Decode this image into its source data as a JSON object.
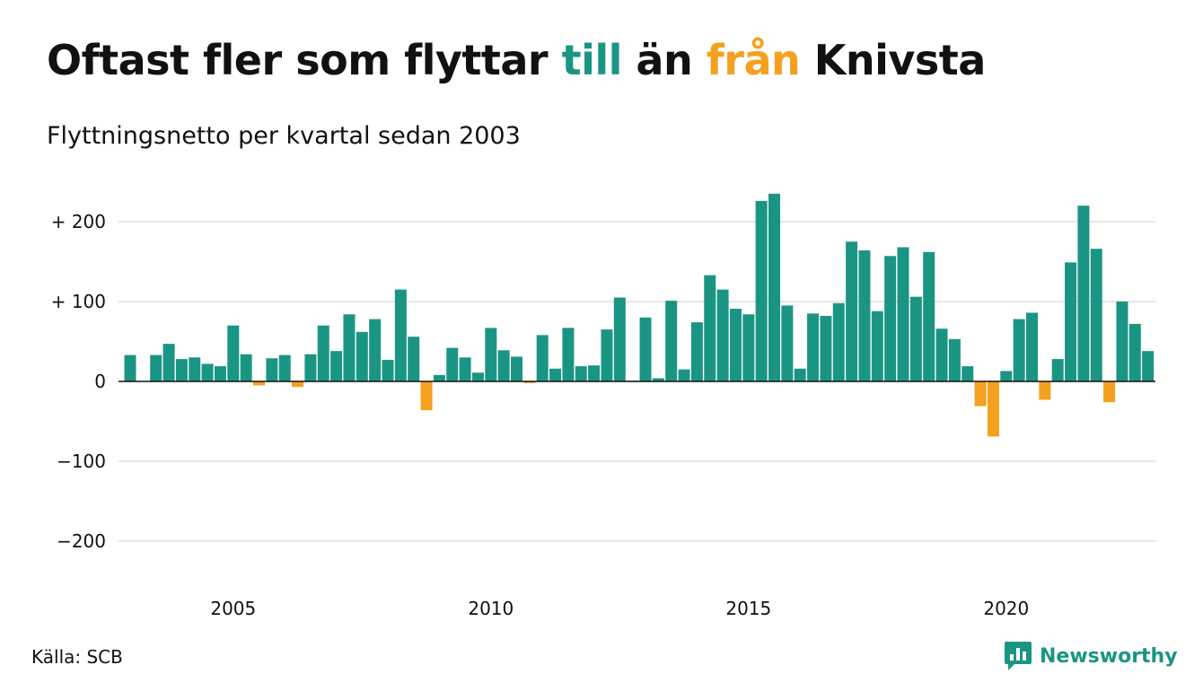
{
  "header": {
    "title_part1": "Oftast fler som flyttar ",
    "title_to": "till",
    "title_part2": " än ",
    "title_from": "från",
    "title_part3": " Knivsta",
    "subtitle": "Flyttningsnetto per kvartal sedan 2003"
  },
  "footer": {
    "source": "Källa: SCB",
    "brand": "Newsworthy",
    "brand_icon": "bar-chart-speech-bubble-icon"
  },
  "colors": {
    "positive": "#1b9583",
    "negative": "#f5a01e",
    "grid": "#dddddd",
    "zero_line": "#111111",
    "text": "#111111",
    "brand": "#1b9583"
  },
  "chart_data": {
    "type": "bar",
    "title": "Oftast fler som flyttar till än från Knivsta",
    "subtitle": "Flyttningsnetto per kvartal sedan 2003",
    "xlabel": "",
    "ylabel": "",
    "ylim": [
      -250,
      250
    ],
    "yticks": [
      {
        "value": 200,
        "label": "+ 200"
      },
      {
        "value": 100,
        "label": "+ 100"
      },
      {
        "value": 0,
        "label": "0"
      },
      {
        "value": -100,
        "label": "−100"
      },
      {
        "value": -200,
        "label": "−200"
      }
    ],
    "xticks": [
      {
        "year": 2005,
        "label": "2005"
      },
      {
        "year": 2010,
        "label": "2010"
      },
      {
        "year": 2015,
        "label": "2015"
      },
      {
        "year": 2020,
        "label": "2020"
      }
    ],
    "grid": true,
    "legend": "none",
    "start": "2003-Q1",
    "frequency": "quarterly",
    "categories": [
      "2003-Q1",
      "2003-Q2",
      "2003-Q3",
      "2003-Q4",
      "2004-Q1",
      "2004-Q2",
      "2004-Q3",
      "2004-Q4",
      "2005-Q1",
      "2005-Q2",
      "2005-Q3",
      "2005-Q4",
      "2006-Q1",
      "2006-Q2",
      "2006-Q3",
      "2006-Q4",
      "2007-Q1",
      "2007-Q2",
      "2007-Q3",
      "2007-Q4",
      "2008-Q1",
      "2008-Q2",
      "2008-Q3",
      "2008-Q4",
      "2009-Q1",
      "2009-Q2",
      "2009-Q3",
      "2009-Q4",
      "2010-Q1",
      "2010-Q2",
      "2010-Q3",
      "2010-Q4",
      "2011-Q1",
      "2011-Q2",
      "2011-Q3",
      "2011-Q4",
      "2012-Q1",
      "2012-Q2",
      "2012-Q3",
      "2012-Q4",
      "2013-Q1",
      "2013-Q2",
      "2013-Q3",
      "2013-Q4",
      "2014-Q1",
      "2014-Q2",
      "2014-Q3",
      "2014-Q4",
      "2015-Q1",
      "2015-Q2",
      "2015-Q3",
      "2015-Q4",
      "2016-Q1",
      "2016-Q2",
      "2016-Q3",
      "2016-Q4",
      "2017-Q1",
      "2017-Q2",
      "2017-Q3",
      "2017-Q4",
      "2018-Q1",
      "2018-Q2",
      "2018-Q3",
      "2018-Q4",
      "2019-Q1",
      "2019-Q2",
      "2019-Q3",
      "2019-Q4",
      "2020-Q1",
      "2020-Q2",
      "2020-Q3",
      "2020-Q4",
      "2021-Q1",
      "2021-Q2",
      "2021-Q3",
      "2021-Q4",
      "2022-Q1",
      "2022-Q2",
      "2022-Q3",
      "2022-Q4",
      "2023-Q1"
    ],
    "values": [
      33,
      0,
      33,
      47,
      28,
      30,
      22,
      19,
      70,
      34,
      -5,
      29,
      33,
      -7,
      34,
      70,
      38,
      84,
      62,
      78,
      27,
      115,
      56,
      -36,
      8,
      42,
      30,
      11,
      67,
      39,
      31,
      -2,
      58,
      16,
      67,
      19,
      20,
      65,
      105,
      1,
      80,
      4,
      101,
      15,
      74,
      133,
      115,
      91,
      84,
      226,
      235,
      95,
      16,
      85,
      82,
      98,
      175,
      164,
      88,
      157,
      168,
      106,
      162,
      66,
      53,
      19,
      -31,
      -69,
      13,
      78,
      86,
      -23,
      28,
      149,
      220,
      166,
      -26,
      100,
      72,
      38,
      0
    ]
  }
}
